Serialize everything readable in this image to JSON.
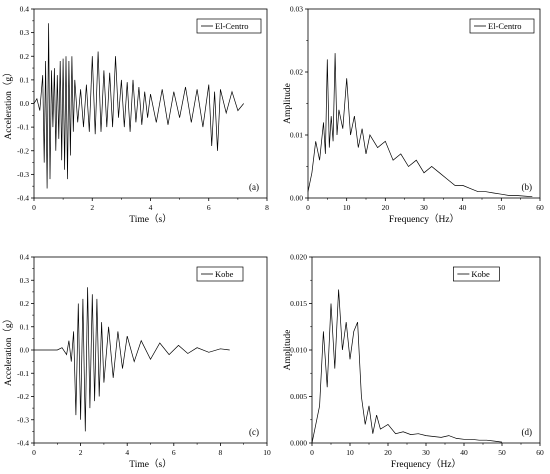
{
  "chart_data": [
    {
      "type": "line",
      "panel_label": "(a)",
      "xlabel": "Time（s）",
      "ylabel": "Acceleration（g）",
      "xlim": [
        0,
        8
      ],
      "ylim": [
        -0.4,
        0.4
      ],
      "xticks": [
        0,
        2,
        4,
        6,
        8
      ],
      "xtick_labels": [
        "0",
        "2",
        "4",
        "6",
        "8"
      ],
      "yticks": [
        -0.4,
        -0.3,
        -0.2,
        -0.1,
        0.0,
        0.1,
        0.2,
        0.3,
        0.4
      ],
      "ytick_labels": [
        "-0.4",
        "-0.3",
        "-0.2",
        "-0.1",
        "0.0",
        "0.1",
        "0.2",
        "0.3",
        "0.4"
      ],
      "legend_position": "top-right",
      "grid": false,
      "series": [
        {
          "name": "El-Centro",
          "x": [
            0,
            0.1,
            0.2,
            0.3,
            0.35,
            0.4,
            0.45,
            0.5,
            0.55,
            0.6,
            0.65,
            0.7,
            0.75,
            0.8,
            0.85,
            0.9,
            0.95,
            1.0,
            1.05,
            1.1,
            1.15,
            1.2,
            1.25,
            1.3,
            1.35,
            1.4,
            1.5,
            1.6,
            1.7,
            1.8,
            1.9,
            2.0,
            2.1,
            2.2,
            2.3,
            2.4,
            2.5,
            2.6,
            2.7,
            2.8,
            2.9,
            3.0,
            3.1,
            3.2,
            3.3,
            3.4,
            3.5,
            3.6,
            3.7,
            3.8,
            3.9,
            4.0,
            4.2,
            4.4,
            4.6,
            4.8,
            5.0,
            5.2,
            5.4,
            5.6,
            5.8,
            6.0,
            6.1,
            6.2,
            6.3,
            6.4,
            6.6,
            6.8,
            7.0,
            7.2
          ],
          "y": [
            0.0,
            0.02,
            -0.03,
            0.12,
            -0.25,
            0.18,
            -0.36,
            0.34,
            -0.32,
            0.14,
            -0.1,
            0.15,
            -0.2,
            0.12,
            -0.15,
            0.18,
            -0.24,
            0.19,
            -0.28,
            0.2,
            -0.32,
            0.18,
            -0.22,
            0.2,
            -0.12,
            0.1,
            -0.08,
            0.06,
            -0.1,
            0.08,
            -0.12,
            0.2,
            -0.13,
            0.22,
            -0.12,
            0.14,
            -0.1,
            0.13,
            -0.1,
            0.2,
            -0.06,
            0.1,
            -0.1,
            0.09,
            -0.12,
            0.1,
            -0.08,
            0.07,
            -0.09,
            0.05,
            -0.06,
            0.04,
            -0.08,
            0.06,
            -0.09,
            0.05,
            -0.06,
            0.07,
            -0.08,
            0.06,
            -0.1,
            0.08,
            -0.18,
            0.05,
            -0.2,
            0.06,
            -0.04,
            0.05,
            -0.03,
            0.0
          ]
        }
      ]
    },
    {
      "type": "line",
      "panel_label": "(b)",
      "xlabel": "Frequency（Hz）",
      "ylabel": "Amplitude",
      "xlim": [
        0,
        60
      ],
      "ylim": [
        0,
        0.03
      ],
      "xticks": [
        0,
        10,
        20,
        30,
        40,
        50,
        60
      ],
      "xtick_labels": [
        "0",
        "10",
        "20",
        "30",
        "40",
        "50",
        "60"
      ],
      "yticks": [
        0,
        0.01,
        0.02,
        0.03
      ],
      "ytick_labels": [
        "0.00",
        "0.01",
        "0.02",
        "0.03"
      ],
      "legend_position": "top-right",
      "grid": false,
      "series": [
        {
          "name": "El-Centro",
          "x": [
            0,
            1,
            2,
            3,
            4,
            4.5,
            5,
            5.5,
            6,
            6.5,
            7,
            7.5,
            8,
            9,
            10,
            11,
            12,
            13,
            14,
            15,
            16,
            18,
            20,
            22,
            24,
            26,
            28,
            30,
            32,
            34,
            36,
            38,
            40,
            42,
            44,
            46,
            48,
            50,
            52,
            54,
            56,
            58
          ],
          "y": [
            0.001,
            0.004,
            0.009,
            0.006,
            0.012,
            0.007,
            0.022,
            0.008,
            0.013,
            0.009,
            0.023,
            0.01,
            0.014,
            0.011,
            0.019,
            0.01,
            0.013,
            0.008,
            0.011,
            0.007,
            0.01,
            0.008,
            0.009,
            0.006,
            0.007,
            0.005,
            0.006,
            0.004,
            0.005,
            0.004,
            0.003,
            0.002,
            0.002,
            0.0015,
            0.001,
            0.001,
            0.0008,
            0.0006,
            0.0004,
            0.0004,
            0.0003,
            0.0002
          ]
        }
      ]
    },
    {
      "type": "line",
      "panel_label": "(c)",
      "xlabel": "Time（s）",
      "ylabel": "Acceleration（g）",
      "xlim": [
        0,
        10
      ],
      "ylim": [
        -0.4,
        0.4
      ],
      "xticks": [
        0,
        2,
        4,
        6,
        8,
        10
      ],
      "xtick_labels": [
        "0",
        "2",
        "4",
        "6",
        "8",
        "10"
      ],
      "yticks": [
        -0.4,
        -0.3,
        -0.2,
        -0.1,
        0.0,
        0.1,
        0.2,
        0.3,
        0.4
      ],
      "ytick_labels": [
        "-0.4",
        "-0.3",
        "-0.2",
        "-0.1",
        "0.0",
        "0.1",
        "0.2",
        "0.3",
        "0.4"
      ],
      "legend_position": "top-right",
      "grid": false,
      "series": [
        {
          "name": "Kobe",
          "x": [
            0,
            0.5,
            1.0,
            1.2,
            1.4,
            1.5,
            1.6,
            1.7,
            1.8,
            1.9,
            2.0,
            2.1,
            2.2,
            2.3,
            2.4,
            2.5,
            2.6,
            2.7,
            2.8,
            2.9,
            3.0,
            3.2,
            3.4,
            3.6,
            3.8,
            4.0,
            4.3,
            4.6,
            5.0,
            5.4,
            5.8,
            6.2,
            6.6,
            7.0,
            7.5,
            8.0,
            8.4
          ],
          "y": [
            0.0,
            0.0,
            0.0,
            0.01,
            -0.02,
            0.04,
            -0.05,
            0.08,
            -0.28,
            0.2,
            -0.3,
            0.22,
            -0.35,
            0.27,
            -0.25,
            0.24,
            -0.22,
            0.22,
            -0.2,
            0.12,
            -0.14,
            0.1,
            -0.12,
            0.08,
            -0.08,
            0.06,
            -0.05,
            0.04,
            -0.04,
            0.03,
            -0.02,
            0.02,
            -0.015,
            0.01,
            -0.01,
            0.005,
            0.0
          ]
        }
      ]
    },
    {
      "type": "line",
      "panel_label": "(d)",
      "xlabel": "Frequency（Hz）",
      "ylabel": "Amplitude",
      "xlim": [
        0,
        60
      ],
      "ylim": [
        0,
        0.02
      ],
      "xticks": [
        0,
        10,
        20,
        30,
        40,
        50,
        60
      ],
      "xtick_labels": [
        "0",
        "10",
        "20",
        "30",
        "40",
        "50",
        "60"
      ],
      "yticks": [
        0,
        0.005,
        0.01,
        0.015,
        0.02
      ],
      "ytick_labels": [
        "0.000",
        "0.005",
        "0.010",
        "0.015",
        "0.020"
      ],
      "legend_position": "top-left",
      "grid": false,
      "series": [
        {
          "name": "Kobe",
          "x": [
            0,
            1,
            2,
            3,
            4,
            5,
            6,
            7,
            8,
            9,
            10,
            11,
            12,
            13,
            14,
            15,
            16,
            17,
            18,
            20,
            22,
            24,
            26,
            28,
            30,
            32,
            34,
            36,
            38,
            40,
            42,
            44,
            46,
            48,
            50
          ],
          "y": [
            0.0,
            0.002,
            0.004,
            0.012,
            0.006,
            0.015,
            0.008,
            0.0165,
            0.01,
            0.013,
            0.009,
            0.012,
            0.013,
            0.005,
            0.002,
            0.004,
            0.001,
            0.003,
            0.0015,
            0.002,
            0.001,
            0.0012,
            0.0009,
            0.001,
            0.0008,
            0.0007,
            0.0006,
            0.0008,
            0.0005,
            0.0004,
            0.0004,
            0.0003,
            0.0003,
            0.0002,
            0.0001
          ]
        }
      ]
    }
  ]
}
